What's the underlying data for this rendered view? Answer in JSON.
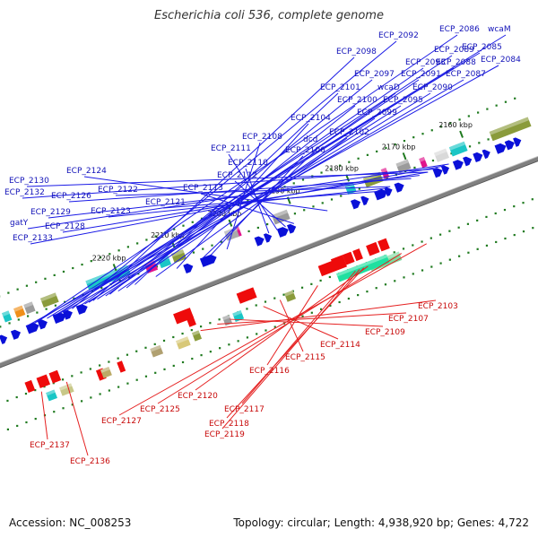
{
  "title": "Escherichia coli 536, complete genome",
  "footer": {
    "accession": "Accession: NC_008253",
    "topology": "Topology: circular; Length: 4,938,920 bp; Genes: 4,722"
  },
  "colors": {
    "forward_strand": "#0a10d8",
    "reverse_strand": "#ee0b0b",
    "backbone": "#808080",
    "tick": "#1f7a1f",
    "top_label": "#1212b8",
    "bottom_label": "#c80a0a",
    "leader_top": "#1a1ae6",
    "leader_bottom": "#e52020"
  },
  "scale_ticks": [
    "2160 kbp",
    "2170 kbp",
    "2180 kbp",
    "2190 kbp",
    "2200 kbp",
    "2210 kbp",
    "2220 kbp"
  ],
  "gene_labels_top": [
    "ECP_2086",
    "wcaM",
    "ECP_2092",
    "ECP_2085",
    "ECP_2089",
    "ECP_2098",
    "ECP_2093",
    "ECP_2088",
    "ECP_2084",
    "ECP_2097",
    "ECP_2091",
    "ECP_2087",
    "ECP_2101",
    "wcaD",
    "ECP_2090",
    "ECP_2100",
    "ECP_2095",
    "ECP_2099",
    "ECP_2104",
    "ECP_2102",
    "dcd",
    "ECP_2108",
    "ECP_2106",
    "ECP_2111",
    "ECP_2110",
    "ECP_2124",
    "ECP_2112",
    "ECP_2130",
    "ECP_2122",
    "ECP_2113",
    "ECP_2132",
    "ECP_2126",
    "ECP_2121",
    "ECP_2129",
    "ECP_2123",
    "gatY",
    "ECP_2128",
    "ECP_2133"
  ],
  "gene_labels_bottom": [
    "ECP_2103",
    "ECP_2107",
    "ECP_2109",
    "ECP_2114",
    "ECP_2115",
    "ECP_2116",
    "ECP_2120",
    "ECP_2117",
    "ECP_2125",
    "ECP_2127",
    "ECP_2118",
    "ECP_2119",
    "ECP_2137",
    "ECP_2136"
  ]
}
